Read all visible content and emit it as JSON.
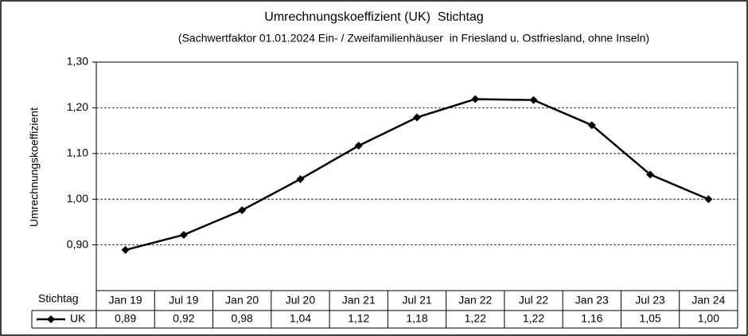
{
  "chart_data": {
    "type": "line",
    "title": "Umrechnungskoeffizient (UK)  Stichtag",
    "subtitle": "(Sachwertfaktor 01.01.2024 Ein- / Zweifamilienhäuser  in Friesland u. Ostfriesland, ohne Inseln)",
    "y_label": "Umrechnungskoeffizient",
    "table_header": "Stichtag",
    "categories": [
      "Jan 19",
      "Jul 19",
      "Jan 20",
      "Jul 20",
      "Jan 21",
      "Jul 21",
      "Jan 22",
      "Jul 22",
      "Jan 23",
      "Jul 23",
      "Jan 24"
    ],
    "series": [
      {
        "name": "UK",
        "color": "#000000",
        "values": [
          0.889,
          0.922,
          0.976,
          1.044,
          1.117,
          1.179,
          1.219,
          1.217,
          1.162,
          1.054,
          1.0
        ],
        "value_labels": [
          "0,89",
          "0,92",
          "0,98",
          "1,04",
          "1,12",
          "1,18",
          "1,22",
          "1,22",
          "1,16",
          "1,05",
          "1,00"
        ]
      }
    ],
    "ylim": [
      0.8,
      1.3
    ],
    "yticks": [
      {
        "value": 0.9,
        "label": "0,90"
      },
      {
        "value": 1.0,
        "label": "1,00"
      },
      {
        "value": 1.1,
        "label": "1,10"
      },
      {
        "value": 1.2,
        "label": "1,20"
      },
      {
        "value": 1.3,
        "label": "1,30"
      }
    ],
    "grid": true
  }
}
